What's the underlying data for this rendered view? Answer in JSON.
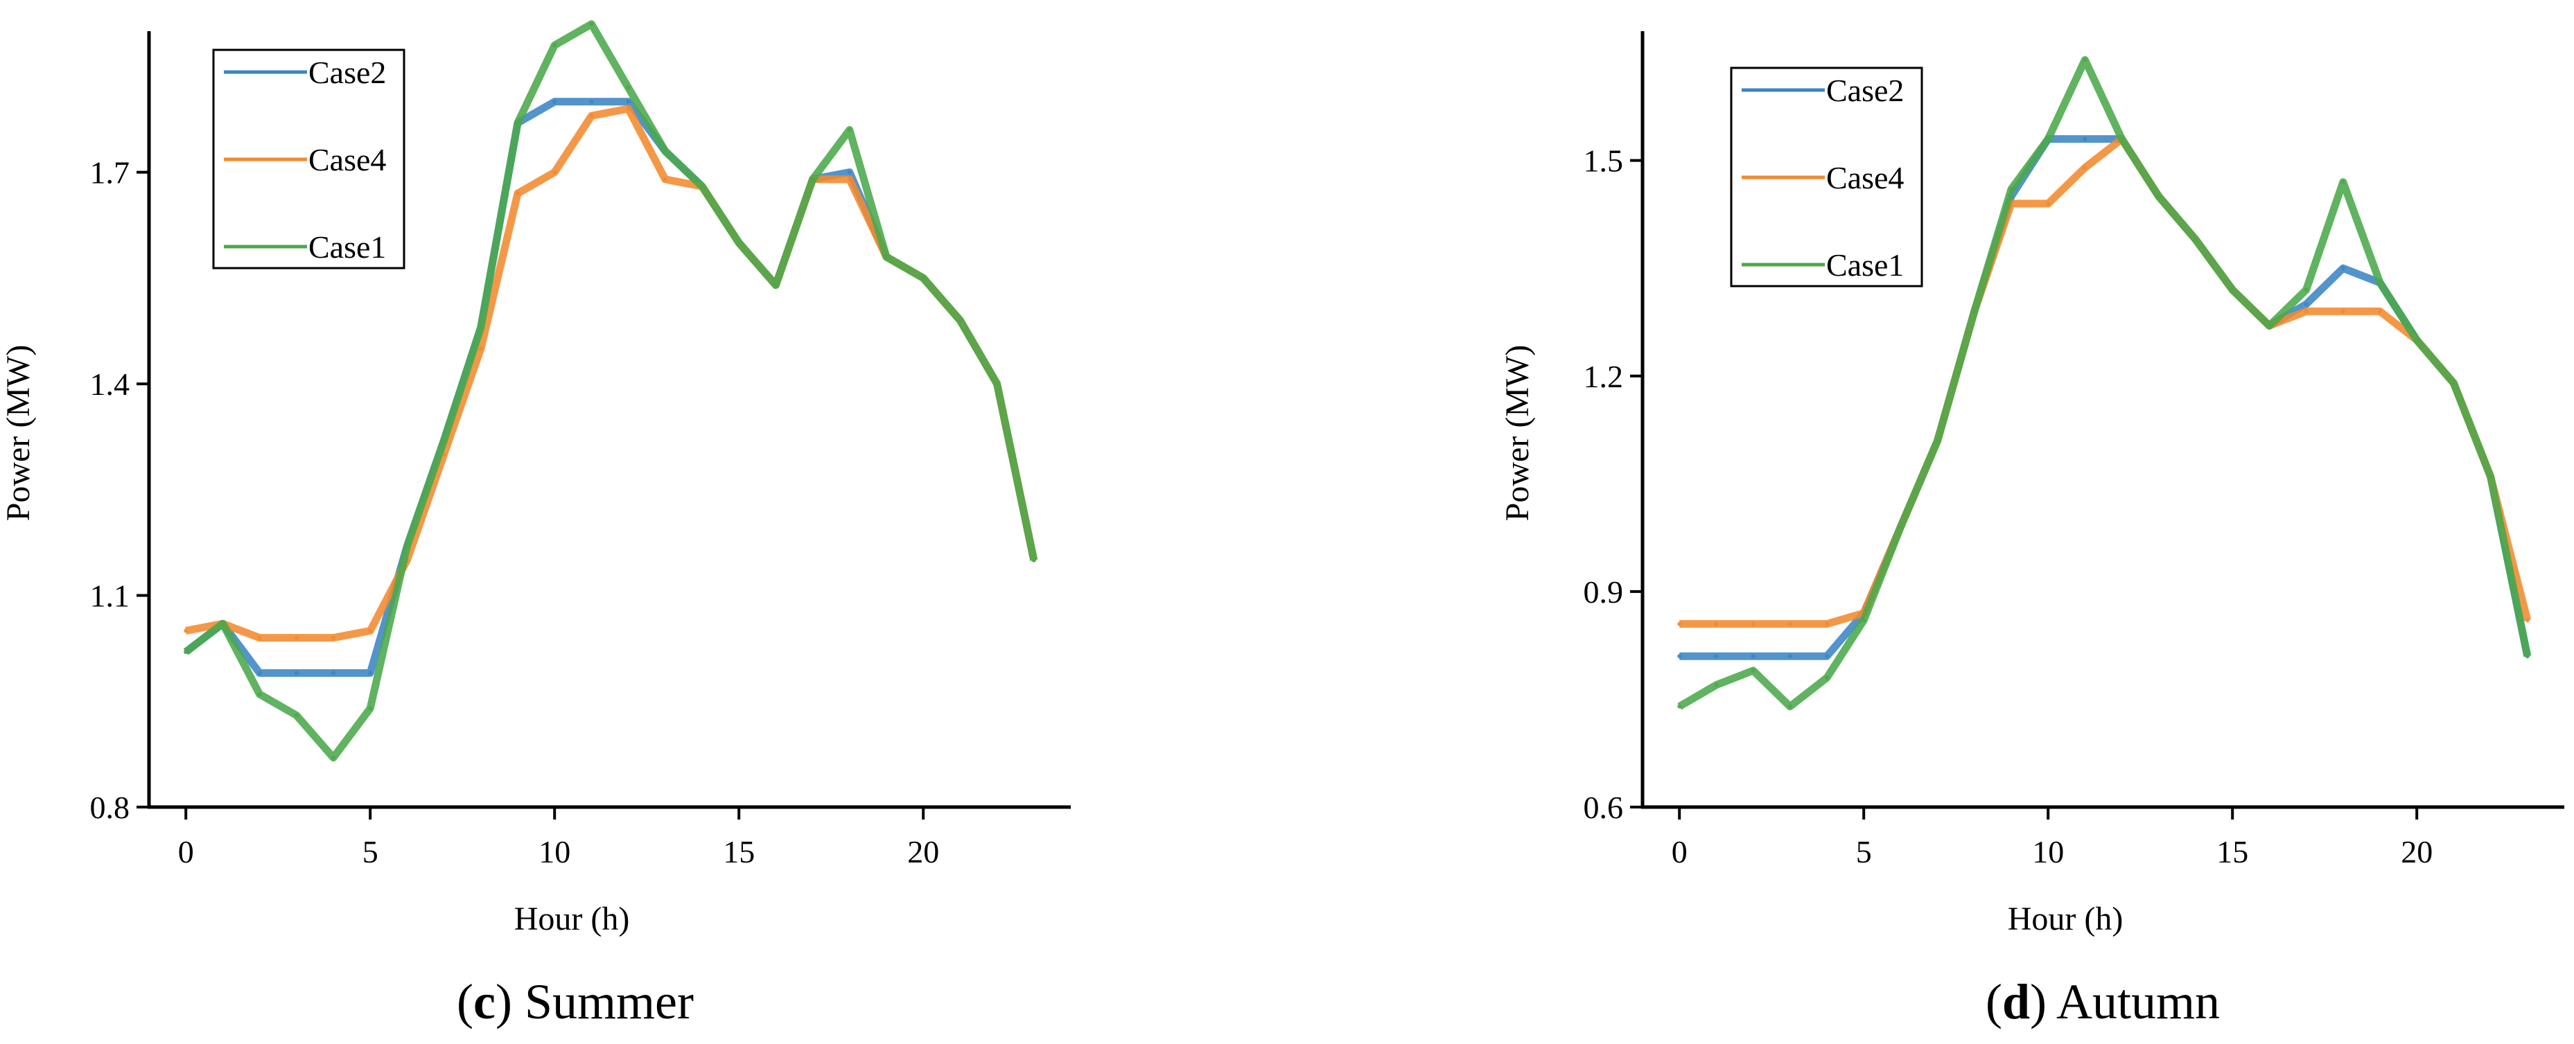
{
  "chart_data": [
    {
      "type": "line",
      "xlabel": "Hour (h)",
      "ylabel": "Power (MW)",
      "xlim": [
        -1,
        24
      ],
      "ylim": [
        0.8,
        1.9
      ],
      "xticks": [
        0,
        5,
        10,
        15,
        20
      ],
      "yticks": [
        0.8,
        1.1,
        1.4,
        1.7
      ],
      "caption_letter": "c",
      "caption_text": "Summer",
      "legend_placement": "top-left",
      "grid": false,
      "x": [
        0,
        1,
        2,
        3,
        4,
        5,
        6,
        7,
        8,
        9,
        10,
        11,
        12,
        13,
        14,
        15,
        16,
        17,
        18,
        19,
        20,
        21,
        22,
        23
      ],
      "series": [
        {
          "name": "Case2",
          "color": "#3a85c4",
          "values": [
            1.02,
            1.06,
            0.99,
            0.99,
            0.99,
            0.99,
            1.17,
            1.32,
            1.48,
            1.77,
            1.8,
            1.8,
            1.8,
            1.73,
            1.68,
            1.6,
            1.54,
            1.69,
            1.7,
            1.58,
            1.55,
            1.49,
            1.4,
            1.15
          ]
        },
        {
          "name": "Case4",
          "color": "#f28a2e",
          "values": [
            1.05,
            1.06,
            1.04,
            1.04,
            1.04,
            1.05,
            1.15,
            1.3,
            1.45,
            1.67,
            1.7,
            1.78,
            1.79,
            1.69,
            1.68,
            1.6,
            1.54,
            1.69,
            1.69,
            1.58,
            1.55,
            1.49,
            1.4,
            1.15
          ]
        },
        {
          "name": "Case1",
          "color": "#4aa84a",
          "values": [
            1.02,
            1.06,
            0.96,
            0.93,
            0.87,
            0.94,
            1.17,
            1.32,
            1.48,
            1.77,
            1.88,
            1.91,
            1.82,
            1.73,
            1.68,
            1.6,
            1.54,
            1.69,
            1.76,
            1.58,
            1.55,
            1.49,
            1.4,
            1.15
          ]
        }
      ]
    },
    {
      "type": "line",
      "xlabel": "Hour (h)",
      "ylabel": "Power (MW)",
      "xlim": [
        -1,
        24
      ],
      "ylim": [
        0.6,
        1.68
      ],
      "xticks": [
        0,
        5,
        10,
        15,
        20
      ],
      "yticks": [
        0.6,
        0.9,
        1.2,
        1.5
      ],
      "caption_letter": "d",
      "caption_text": "Autumn",
      "legend_placement": "top-left",
      "grid": false,
      "x": [
        0,
        1,
        2,
        3,
        4,
        5,
        6,
        7,
        8,
        9,
        10,
        11,
        12,
        13,
        14,
        15,
        16,
        17,
        18,
        19,
        20,
        21,
        22,
        23
      ],
      "series": [
        {
          "name": "Case2",
          "color": "#3a85c4",
          "values": [
            0.81,
            0.81,
            0.81,
            0.81,
            0.81,
            0.87,
            0.99,
            1.11,
            1.29,
            1.45,
            1.53,
            1.53,
            1.53,
            1.45,
            1.39,
            1.32,
            1.27,
            1.3,
            1.35,
            1.33,
            1.25,
            1.19,
            1.06,
            0.81
          ]
        },
        {
          "name": "Case4",
          "color": "#f28a2e",
          "values": [
            0.855,
            0.855,
            0.855,
            0.855,
            0.855,
            0.87,
            0.99,
            1.11,
            1.29,
            1.44,
            1.44,
            1.49,
            1.53,
            1.45,
            1.39,
            1.32,
            1.27,
            1.29,
            1.29,
            1.29,
            1.25,
            1.19,
            1.06,
            0.86
          ]
        },
        {
          "name": "Case1",
          "color": "#4aa84a",
          "values": [
            0.74,
            0.77,
            0.79,
            0.74,
            0.78,
            0.86,
            0.99,
            1.11,
            1.29,
            1.46,
            1.53,
            1.64,
            1.53,
            1.45,
            1.39,
            1.32,
            1.27,
            1.32,
            1.47,
            1.33,
            1.25,
            1.19,
            1.06,
            0.81
          ]
        }
      ]
    }
  ]
}
